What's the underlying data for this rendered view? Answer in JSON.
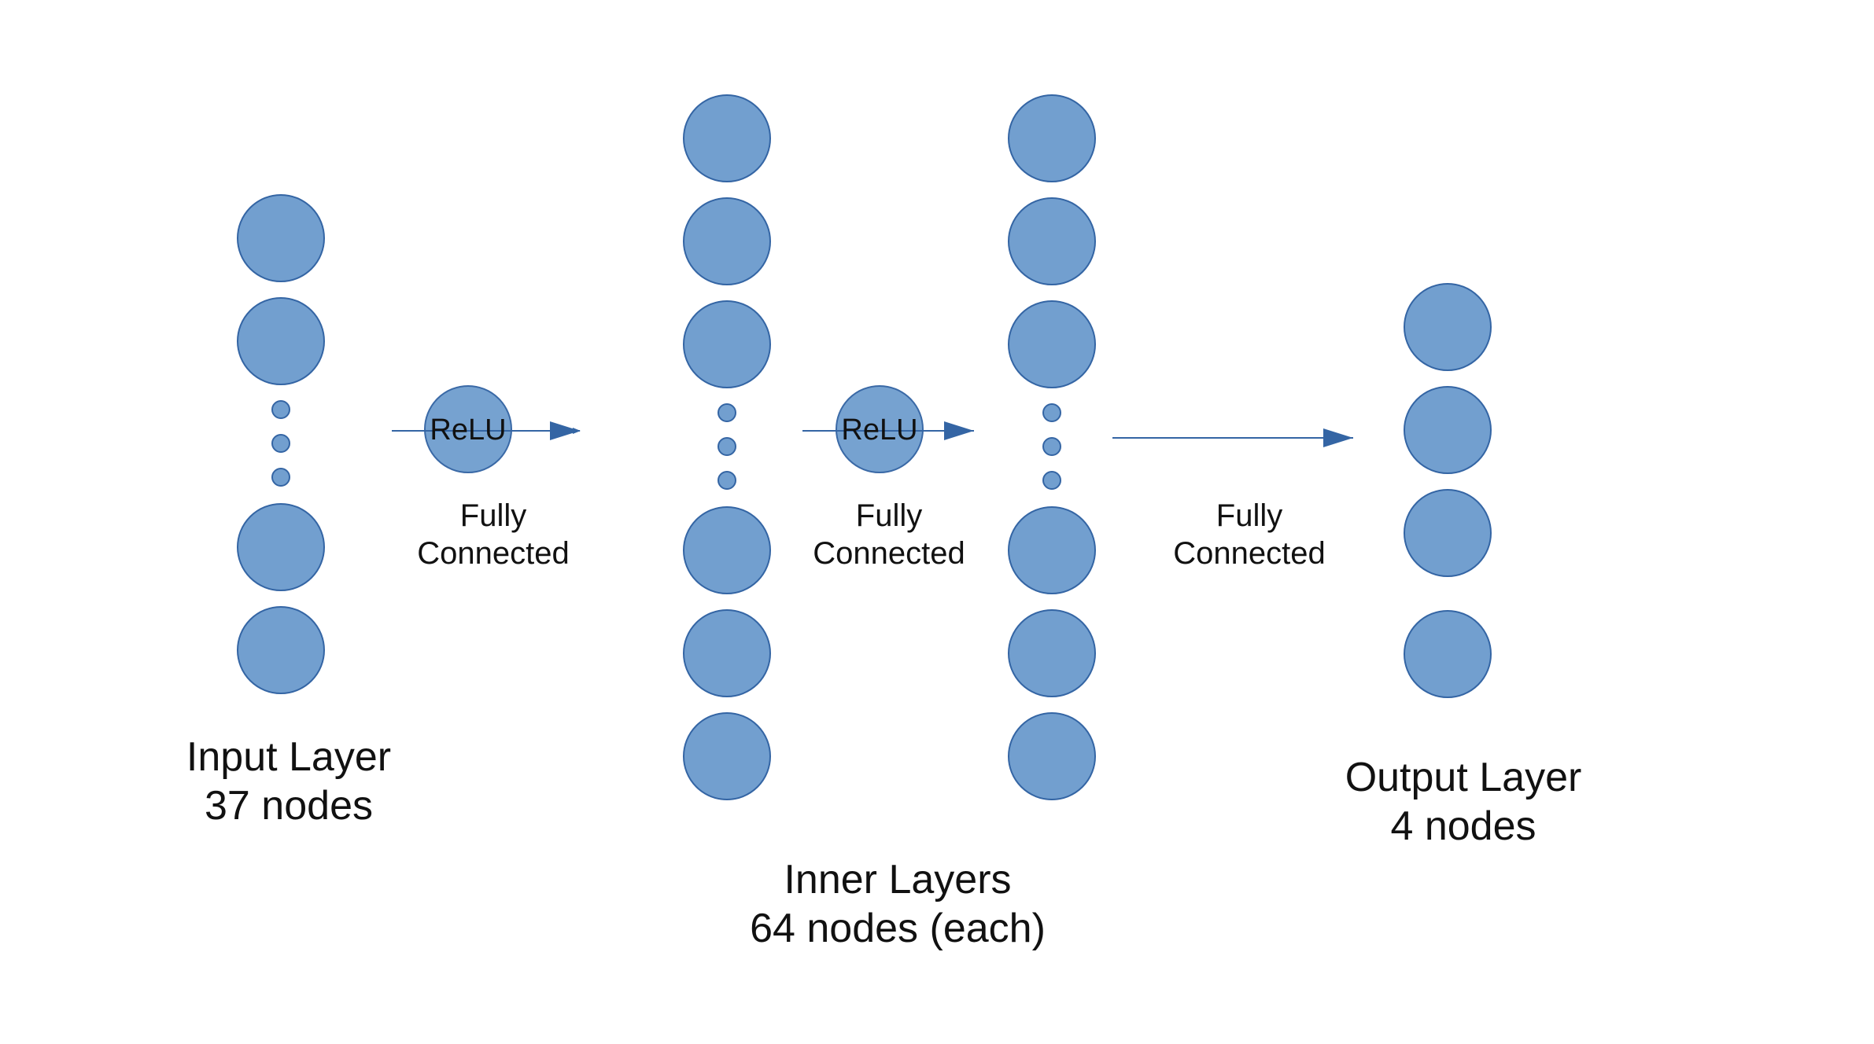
{
  "colors": {
    "node_fill": "#729fcf",
    "node_stroke": "#3465a4",
    "arrow": "#3465a4",
    "text": "#111111"
  },
  "layers": {
    "input": {
      "name": "Input Layer",
      "count": "37 nodes"
    },
    "inner": {
      "name": "Inner Layers",
      "count": "64 nodes (each)"
    },
    "output": {
      "name": "Output Layer",
      "count": "4 nodes"
    }
  },
  "connections": [
    {
      "activation": "ReLU",
      "line1": "Fully",
      "line2": "Connected"
    },
    {
      "activation": "ReLU",
      "line1": "Fully",
      "line2": "Connected"
    },
    {
      "activation": "",
      "line1": "Fully",
      "line2": "Connected"
    }
  ]
}
